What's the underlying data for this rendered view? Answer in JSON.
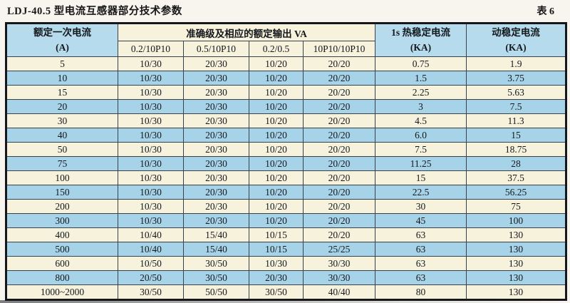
{
  "page": {
    "title": "LDJ-40.5 型电流互感器部分技术参数",
    "table_label": "表 6"
  },
  "table": {
    "header": {
      "primary_line1": "额定一次电流",
      "primary_line2": "(A)",
      "accuracy_group": "准确级及相应的额定输出 VA",
      "accuracy_cols": [
        "0.2/10P10",
        "0.5/10P10",
        "0.2/0.5",
        "10P10/10P10"
      ],
      "thermal_line1": "1s 热稳定电流",
      "thermal_line2": "(KA)",
      "dynamic_line1": "动稳定电流",
      "dynamic_line2": "(KA)"
    },
    "rows": [
      [
        "5",
        "10/30",
        "20/30",
        "10/20",
        "20/20",
        "0.75",
        "1.9"
      ],
      [
        "10",
        "10/30",
        "20/30",
        "10/20",
        "20/20",
        "1.5",
        "3.75"
      ],
      [
        "15",
        "10/30",
        "20/30",
        "10/20",
        "20/20",
        "2.25",
        "5.63"
      ],
      [
        "20",
        "10/30",
        "20/30",
        "10/20",
        "20/20",
        "3",
        "7.5"
      ],
      [
        "30",
        "10/30",
        "20/30",
        "10/20",
        "20/20",
        "4.5",
        "11.3"
      ],
      [
        "40",
        "10/30",
        "20/30",
        "10/20",
        "20/20",
        "6.0",
        "15"
      ],
      [
        "50",
        "10/30",
        "20/30",
        "10/20",
        "20/20",
        "7.5",
        "18.75"
      ],
      [
        "75",
        "10/30",
        "20/30",
        "10/20",
        "20/20",
        "11.25",
        "28"
      ],
      [
        "100",
        "10/30",
        "20/30",
        "10/20",
        "20/20",
        "15",
        "37.5"
      ],
      [
        "150",
        "10/30",
        "20/30",
        "10/20",
        "20/20",
        "22.5",
        "56.25"
      ],
      [
        "200",
        "10/30",
        "20/30",
        "10/20",
        "20/20",
        "30",
        "75"
      ],
      [
        "300",
        "10/30",
        "20/30",
        "10/20",
        "20/20",
        "45",
        "100"
      ],
      [
        "400",
        "10/40",
        "15/40",
        "10/15",
        "20/20",
        "63",
        "130"
      ],
      [
        "500",
        "10/40",
        "15/40",
        "10/15",
        "25/25",
        "63",
        "130"
      ],
      [
        "600",
        "10/50",
        "30/50",
        "10/30",
        "30/30",
        "63",
        "130"
      ],
      [
        "800",
        "20/50",
        "30/50",
        "20/30",
        "30/30",
        "63",
        "130"
      ],
      [
        "1000~2000",
        "30/50",
        "50/50",
        "30/50",
        "40/40",
        "80",
        "130"
      ]
    ]
  },
  "colors": {
    "row_cream": "#f7f2dc",
    "row_blue": "#a7d3e8",
    "header_blue": "#b5dbec",
    "border": "#39414d"
  }
}
